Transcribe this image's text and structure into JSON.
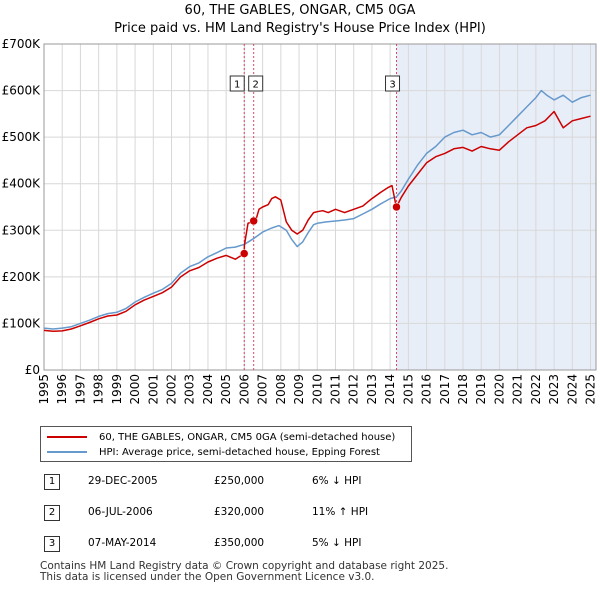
{
  "title_line1": "60, THE GABLES, ONGAR, CM5 0GA",
  "title_line2": "Price paid vs. HM Land Registry's House Price Index (HPI)",
  "colors": {
    "property": "#cc0000",
    "hpi": "#6699cc",
    "shade": "#e8eef8",
    "vline": "#dd4466"
  },
  "chart_data": {
    "type": "line",
    "ylim": [
      0,
      700000
    ],
    "xlim": [
      1995,
      2025.3
    ],
    "y_ticks": [
      {
        "value": 0,
        "label": "£0"
      },
      {
        "value": 100000,
        "label": "£100K"
      },
      {
        "value": 200000,
        "label": "£200K"
      },
      {
        "value": 300000,
        "label": "£300K"
      },
      {
        "value": 400000,
        "label": "£400K"
      },
      {
        "value": 500000,
        "label": "£500K"
      },
      {
        "value": 600000,
        "label": "£600K"
      },
      {
        "value": 700000,
        "label": "£700K"
      }
    ],
    "x_ticks": [
      "1995",
      "1996",
      "1997",
      "1998",
      "1999",
      "2000",
      "2001",
      "2002",
      "2003",
      "2004",
      "2005",
      "2006",
      "2007",
      "2008",
      "2009",
      "2010",
      "2011",
      "2012",
      "2013",
      "2014",
      "2015",
      "2016",
      "2017",
      "2018",
      "2019",
      "2020",
      "2021",
      "2022",
      "2023",
      "2024",
      "2025"
    ],
    "shaded_range": [
      2014.35,
      2025.3
    ],
    "series": [
      {
        "name": "60, THE GABLES, ONGAR, CM5 0GA (semi-detached house)",
        "x": [
          1995,
          1995.5,
          1996,
          1996.5,
          1997,
          1997.5,
          1998,
          1998.5,
          1999,
          1999.5,
          2000,
          2000.5,
          2001,
          2001.5,
          2002,
          2002.5,
          2003,
          2003.5,
          2004,
          2004.5,
          2005,
          2005.5,
          2005.99,
          2006.0,
          2006.2,
          2006.51,
          2006.6,
          2006.8,
          2007,
          2007.3,
          2007.5,
          2007.7,
          2008,
          2008.3,
          2008.6,
          2008.9,
          2009.2,
          2009.5,
          2009.8,
          2010,
          2010.3,
          2010.6,
          2011,
          2011.5,
          2012,
          2012.5,
          2013,
          2013.5,
          2013.9,
          2014.1,
          2014.34,
          2014.35,
          2014.6,
          2015,
          2015.5,
          2016,
          2016.5,
          2017,
          2017.5,
          2018,
          2018.5,
          2019,
          2019.5,
          2020,
          2020.5,
          2021,
          2021.5,
          2022,
          2022.5,
          2023,
          2023.5,
          2024,
          2024.5,
          2025
        ],
        "values": [
          85000,
          83000,
          84000,
          88000,
          95000,
          102000,
          110000,
          116000,
          118000,
          126000,
          140000,
          150000,
          158000,
          166000,
          178000,
          200000,
          213000,
          220000,
          232000,
          240000,
          246000,
          238000,
          250000,
          268000,
          315000,
          320000,
          318000,
          345000,
          350000,
          355000,
          368000,
          372000,
          365000,
          318000,
          300000,
          292000,
          300000,
          322000,
          338000,
          340000,
          342000,
          338000,
          345000,
          338000,
          345000,
          352000,
          368000,
          382000,
          392000,
          396000,
          350000,
          350000,
          370000,
          395000,
          420000,
          445000,
          458000,
          465000,
          475000,
          478000,
          470000,
          480000,
          475000,
          472000,
          490000,
          505000,
          520000,
          525000,
          535000,
          555000,
          520000,
          535000,
          540000,
          545000
        ]
      },
      {
        "name": "HPI: Average price, semi-detached house, Epping Forest",
        "x": [
          1995,
          1995.5,
          1996,
          1996.5,
          1997,
          1997.5,
          1998,
          1998.5,
          1999,
          1999.5,
          2000,
          2000.5,
          2001,
          2001.5,
          2002,
          2002.5,
          2003,
          2003.5,
          2004,
          2004.5,
          2005,
          2005.5,
          2006,
          2006.5,
          2007,
          2007.5,
          2007.9,
          2008.3,
          2008.6,
          2008.9,
          2009.2,
          2009.5,
          2009.8,
          2010,
          2010.5,
          2011,
          2011.5,
          2012,
          2012.5,
          2013,
          2013.5,
          2014,
          2014.35,
          2014.6,
          2015,
          2015.5,
          2016,
          2016.5,
          2017,
          2017.5,
          2018,
          2018.5,
          2019,
          2019.5,
          2020,
          2020.5,
          2021,
          2021.5,
          2022,
          2022.3,
          2022.6,
          2023,
          2023.5,
          2024,
          2024.5,
          2025
        ],
        "values": [
          90000,
          88000,
          90000,
          93000,
          100000,
          107000,
          115000,
          121000,
          124000,
          132000,
          146000,
          156000,
          165000,
          173000,
          186000,
          208000,
          222000,
          230000,
          243000,
          252000,
          262000,
          264000,
          270000,
          282000,
          296000,
          305000,
          310000,
          300000,
          280000,
          265000,
          275000,
          295000,
          312000,
          315000,
          318000,
          320000,
          322000,
          325000,
          335000,
          345000,
          357000,
          368000,
          372000,
          384000,
          410000,
          440000,
          465000,
          480000,
          500000,
          510000,
          515000,
          505000,
          510000,
          500000,
          505000,
          525000,
          545000,
          565000,
          585000,
          600000,
          590000,
          580000,
          590000,
          575000,
          585000,
          590000
        ]
      }
    ],
    "transactions": [
      {
        "label": "1",
        "date": "29-DEC-2005",
        "x": 2005.99,
        "price": 250000,
        "price_text": "£250,000",
        "hpi_text": "6% ↓ HPI"
      },
      {
        "label": "2",
        "date": "06-JUL-2006",
        "x": 2006.51,
        "price": 320000,
        "price_text": "£320,000",
        "hpi_text": "11% ↑ HPI"
      },
      {
        "label": "3",
        "date": "07-MAY-2014",
        "x": 2014.35,
        "price": 350000,
        "price_text": "£350,000",
        "hpi_text": "5% ↓ HPI"
      }
    ]
  },
  "legend": {
    "property_label": "60, THE GABLES, ONGAR, CM5 0GA (semi-detached house)",
    "hpi_label": "HPI: Average price, semi-detached house, Epping Forest"
  },
  "footer_line1": "Contains HM Land Registry data © Crown copyright and database right 2025.",
  "footer_line2": "This data is licensed under the Open Government Licence v3.0."
}
